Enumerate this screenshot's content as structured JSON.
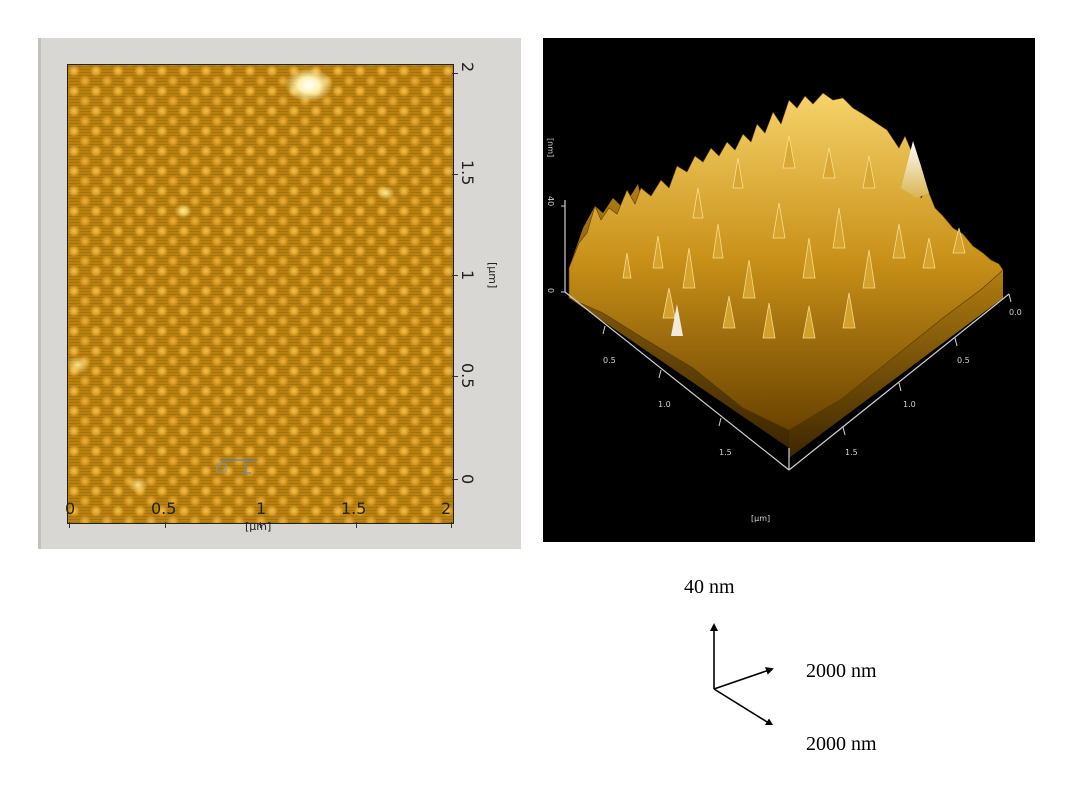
{
  "left_panel": {
    "x_axis": {
      "ticks": [
        "0",
        "0.5",
        "1",
        "1.5",
        "2"
      ],
      "unit": "[µm]"
    },
    "y_axis": {
      "ticks": [
        "0",
        "0.5",
        "1",
        "1.5",
        "2"
      ],
      "unit": "[µm]"
    }
  },
  "right_panel": {
    "z_unit": "[nm]",
    "z_ticks": [
      "40",
      "0"
    ],
    "left_axis_ticks": [
      "0.5",
      "1.0",
      "1.5"
    ],
    "right_axis_ticks": [
      "0.0",
      "0.5",
      "1.0",
      "1.5"
    ],
    "xy_unit": "[µm]"
  },
  "legend": {
    "z_label": "40 nm",
    "x_label": "2000 nm",
    "y_label": "2000 nm"
  }
}
